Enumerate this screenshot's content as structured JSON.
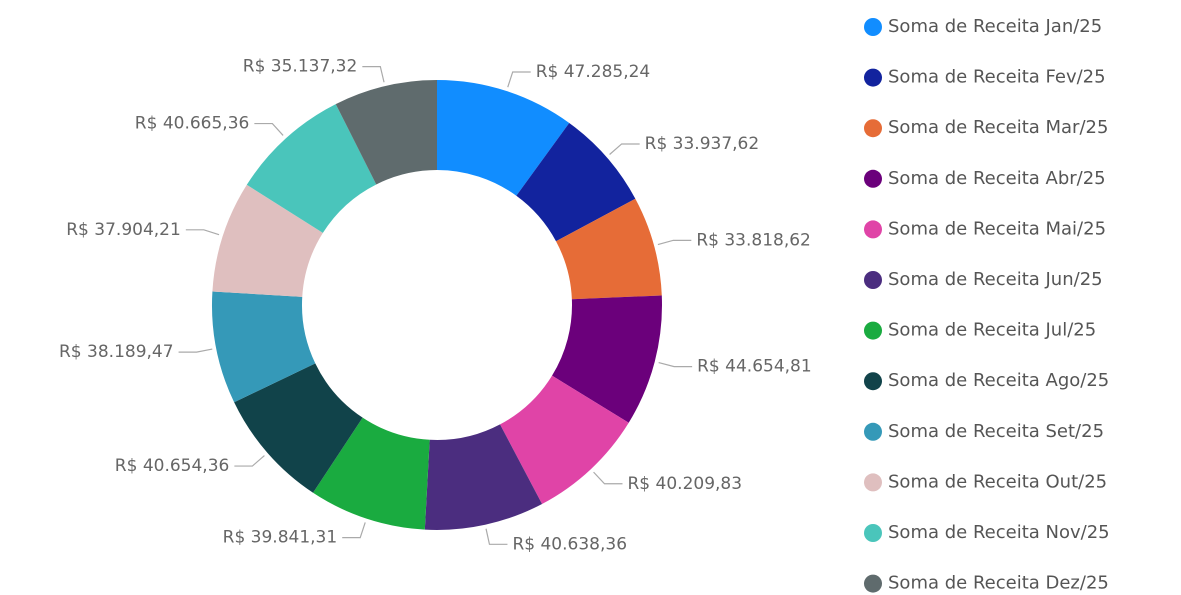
{
  "chart_data": {
    "type": "donut",
    "categories": [
      "Soma de Receita Jan/25",
      "Soma de Receita Fev/25",
      "Soma de Receita Mar/25",
      "Soma de Receita Abr/25",
      "Soma de Receita Mai/25",
      "Soma de Receita Jun/25",
      "Soma de Receita Jul/25",
      "Soma de Receita Ago/25",
      "Soma de Receita Set/25",
      "Soma de Receita Out/25",
      "Soma de Receita Nov/25",
      "Soma de Receita Dez/25"
    ],
    "values": [
      47285.24,
      33937.62,
      33818.62,
      44654.81,
      40209.83,
      40638.36,
      39841.31,
      40654.36,
      38189.47,
      37904.21,
      40665.36,
      35137.32
    ],
    "value_labels": [
      "R$ 47.285,24",
      "R$ 33.937,62",
      "R$ 33.818,62",
      "R$ 44.654,81",
      "R$ 40.209,83",
      "R$ 40.638,36",
      "R$ 39.841,31",
      "R$ 40.654,36",
      "R$ 38.189,47",
      "R$ 37.904,21",
      "R$ 40.665,36",
      "R$ 35.137,32"
    ],
    "colors": [
      "#118dff",
      "#12239e",
      "#e66c37",
      "#6b007b",
      "#e044a7",
      "#4b2d7f",
      "#1aab40",
      "#11434a",
      "#3599b8",
      "#dfbfbf",
      "#4ac5bb",
      "#5f6b6d"
    ],
    "legend": "right"
  }
}
